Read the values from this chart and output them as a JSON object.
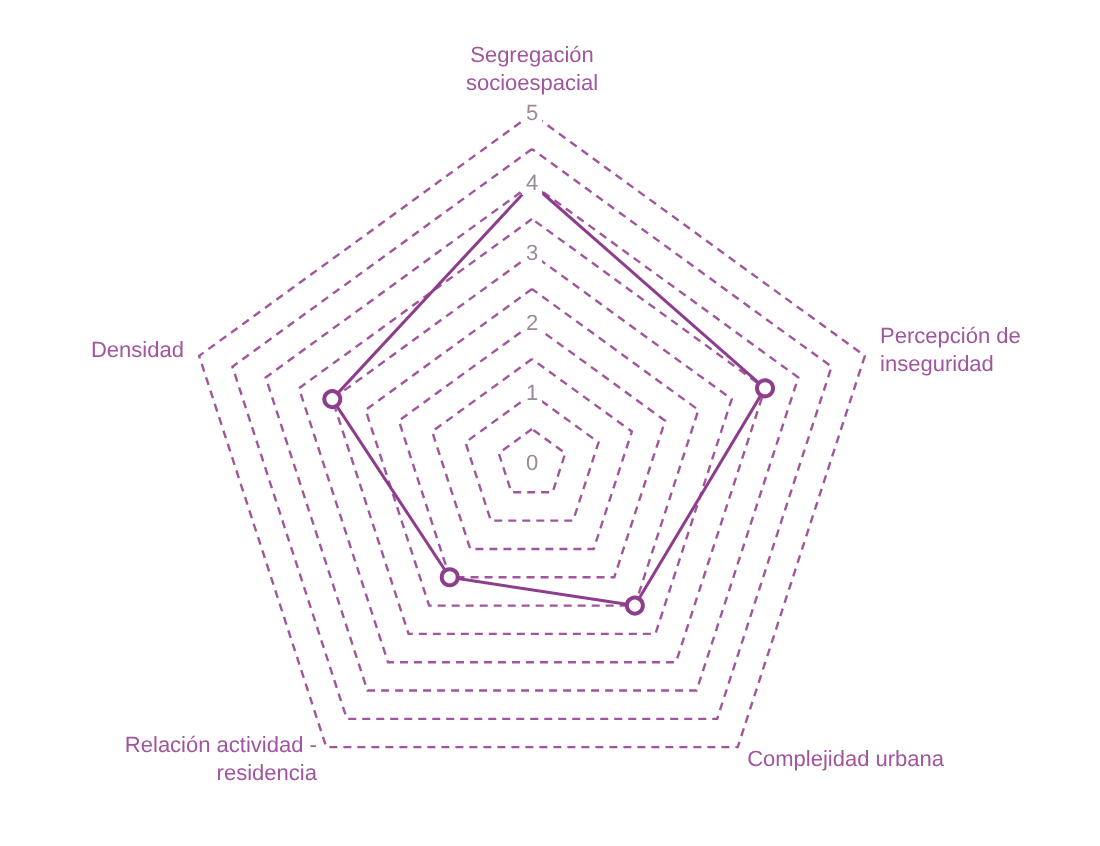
{
  "chart_data": {
    "type": "radar",
    "categories": [
      "Segregación socioespacial",
      "Percepción de inseguridad",
      "Complejidad urbana",
      "Relación actividad - residencia",
      "Densidad"
    ],
    "series": [
      {
        "color": "#8e3d8c",
        "values": [
          4,
          3.5,
          2.5,
          2,
          3
        ]
      }
    ],
    "ylim": [
      0,
      5
    ],
    "yticks": [
      0,
      1,
      2,
      3,
      4,
      5
    ],
    "grid": true,
    "marker": "circle",
    "line_style": "solid"
  }
}
